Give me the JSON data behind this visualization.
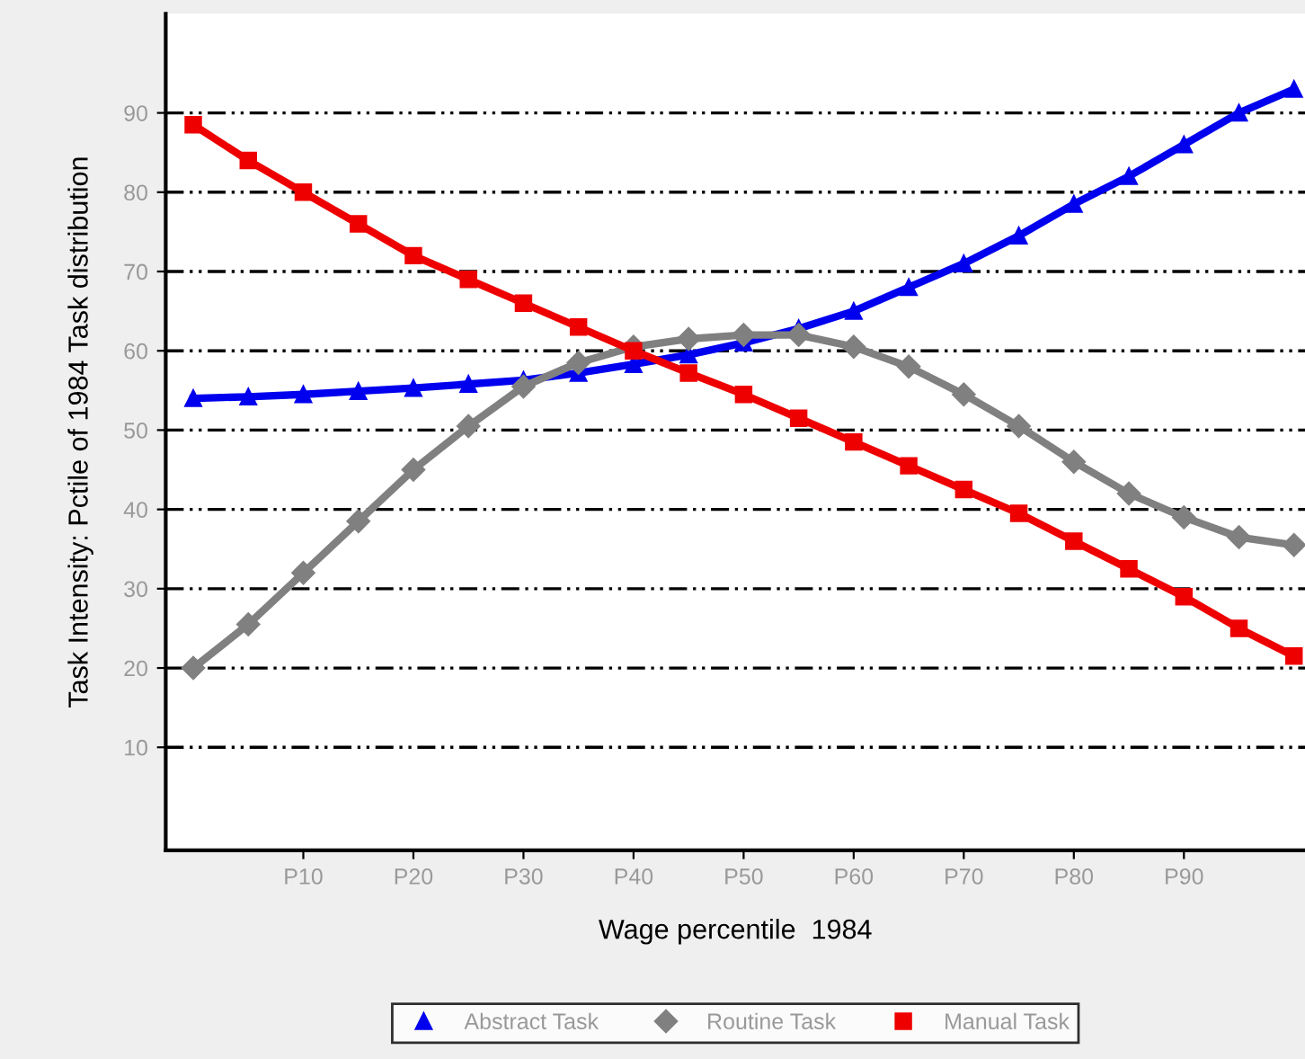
{
  "chart_data": {
    "type": "line",
    "xlabel": "Wage percentile  1984",
    "ylabel": "Task Intensity: Pctile of 1984 Task distribution",
    "categories": [
      null,
      null,
      "P10",
      null,
      "P20",
      null,
      "P30",
      null,
      "P40",
      null,
      "P50",
      null,
      "P60",
      null,
      "P70",
      null,
      "P80",
      null,
      "P90",
      null,
      null
    ],
    "series": [
      {
        "name": "Abstract Task",
        "color": "#0000ee",
        "marker": "triangle",
        "values": [
          54,
          54.2,
          54.5,
          54.9,
          55.3,
          55.8,
          56.3,
          57.2,
          58.3,
          59.5,
          61,
          62.8,
          65,
          68,
          71,
          74.5,
          78.5,
          82,
          86,
          90,
          93
        ]
      },
      {
        "name": "Routine Task",
        "color": "#808080",
        "marker": "diamond",
        "values": [
          20,
          25.5,
          32,
          38.5,
          45,
          50.5,
          55.5,
          58.5,
          60.5,
          61.5,
          62,
          62,
          60.5,
          58,
          54.5,
          50.5,
          46,
          42,
          39,
          36.5,
          35.5
        ]
      },
      {
        "name": "Manual Task",
        "color": "#ee0000",
        "marker": "square",
        "values": [
          88.5,
          84,
          80,
          76,
          72,
          69,
          66,
          63,
          60,
          57.2,
          54.5,
          51.5,
          48.5,
          45.5,
          42.5,
          39.5,
          36,
          32.5,
          29,
          25,
          21.5
        ]
      }
    ],
    "ylim": [
      -3,
      102.5
    ],
    "yticks": [
      10,
      20,
      30,
      40,
      50,
      60,
      70,
      80,
      90
    ],
    "grid": "y",
    "legend": "bottom"
  }
}
